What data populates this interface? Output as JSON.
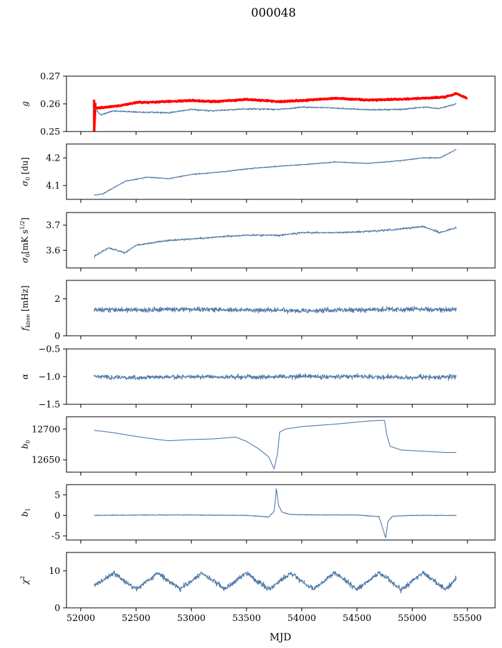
{
  "figure": {
    "title": "000048",
    "xlabel": "MJD"
  },
  "chart_data": {
    "type": "line",
    "title": "000048",
    "xlabel": "MJD",
    "xlim": [
      51870,
      55750
    ],
    "xticks": [
      52000,
      52500,
      53000,
      53500,
      54000,
      54500,
      55000,
      55500
    ],
    "x_start": 52120,
    "x_end": 55400,
    "panels": [
      {
        "ylabel": "g",
        "ylim": [
          0.25,
          0.27
        ],
        "yticks": [
          0.25,
          0.26,
          0.27
        ],
        "series": [
          {
            "color": "#ff0000",
            "x": [
              52120,
              52130,
              52200,
              52350,
              52500,
              52700,
              53000,
              53200,
              53500,
              53800,
              54000,
              54300,
              54600,
              54900,
              55100,
              55200,
              55300,
              55400,
              55500
            ],
            "y": [
              0.2595,
              0.2585,
              0.2587,
              0.2593,
              0.2605,
              0.2607,
              0.2612,
              0.2608,
              0.2616,
              0.2608,
              0.2612,
              0.262,
              0.2614,
              0.2617,
              0.262,
              0.2622,
              0.2625,
              0.2637,
              0.262
            ]
          },
          {
            "color": "#4e79a7",
            "x": [
              52120,
              52180,
              52300,
              52500,
              52800,
              53000,
              53200,
              53500,
              53800,
              54000,
              54300,
              54600,
              54900,
              55100,
              55250,
              55400
            ],
            "y": [
              0.2585,
              0.256,
              0.2575,
              0.257,
              0.2568,
              0.258,
              0.2575,
              0.2582,
              0.258,
              0.2588,
              0.2585,
              0.2578,
              0.258,
              0.2588,
              0.2584,
              0.26
            ]
          }
        ]
      },
      {
        "ylabel": "σ0 [du]",
        "ylim": [
          4.05,
          4.25
        ],
        "yticks": [
          4.1,
          4.2
        ],
        "series": [
          {
            "color": "#4e79a7",
            "x": [
              52120,
              52200,
              52400,
              52600,
              52800,
              53000,
              53300,
              53500,
              53800,
              54000,
              54300,
              54600,
              54900,
              55100,
              55250,
              55400
            ],
            "y": [
              4.065,
              4.07,
              4.115,
              4.13,
              4.125,
              4.14,
              4.15,
              4.16,
              4.17,
              4.175,
              4.185,
              4.18,
              4.19,
              4.2,
              4.2,
              4.23
            ]
          }
        ]
      },
      {
        "ylabel": "σ0[mK s^1/2]",
        "ylim": [
          3.53,
          3.75
        ],
        "yticks": [
          3.6,
          3.7
        ],
        "series": [
          {
            "color": "#4e79a7",
            "x": [
              52120,
              52250,
              52400,
              52500,
              52800,
              53000,
              53300,
              53500,
              53800,
              54000,
              54300,
              54600,
              54900,
              55100,
              55250,
              55400
            ],
            "y": [
              3.575,
              3.61,
              3.59,
              3.62,
              3.64,
              3.645,
              3.655,
              3.66,
              3.66,
              3.67,
              3.67,
              3.675,
              3.685,
              3.695,
              3.67,
              3.69
            ]
          }
        ]
      },
      {
        "ylabel": "f_knee [mHz]",
        "ylim": [
          0,
          3
        ],
        "yticks": [
          0,
          2
        ],
        "series": [
          {
            "color": "#4e79a7",
            "x": [
              52120,
              52500,
              53000,
              53500,
              54000,
              54500,
              55000,
              55400
            ],
            "y": [
              1.4,
              1.4,
              1.45,
              1.4,
              1.35,
              1.4,
              1.45,
              1.4
            ]
          }
        ]
      },
      {
        "ylabel": "α",
        "ylim": [
          -1.5,
          -0.5
        ],
        "yticks": [
          -1.5,
          -1.0,
          -0.5
        ],
        "series": [
          {
            "color": "#4e79a7",
            "x": [
              52120,
              52500,
              53000,
              53500,
              54000,
              54500,
              55000,
              55400
            ],
            "y": [
              -1.0,
              -1.02,
              -1.0,
              -1.01,
              -1.0,
              -1.0,
              -1.02,
              -1.0
            ]
          }
        ]
      },
      {
        "ylabel": "b0",
        "ylim": [
          12630,
          12720
        ],
        "yticks": [
          12650,
          12700
        ],
        "series": [
          {
            "color": "#4e79a7",
            "x": [
              52120,
              52300,
              52500,
              52700,
              52800,
              53000,
              53200,
              53400,
              53500,
              53600,
              53700,
              53750,
              53780,
              53800,
              53850,
              54000,
              54300,
              54600,
              54700,
              54750,
              54770,
              54800,
              54900,
              55100,
              55300,
              55400
            ],
            "y": [
              12698,
              12694,
              12688,
              12683,
              12681,
              12683,
              12684,
              12687,
              12680,
              12669,
              12655,
              12635,
              12660,
              12695,
              12700,
              12704,
              12708,
              12713,
              12714,
              12714,
              12690,
              12672,
              12666,
              12664,
              12662,
              12662
            ]
          }
        ]
      },
      {
        "ylabel": "b1",
        "ylim": [
          -6,
          7.5
        ],
        "yticks": [
          -5,
          0,
          5
        ],
        "series": [
          {
            "color": "#4e79a7",
            "x": [
              52120,
              52500,
              53000,
              53500,
              53700,
              53750,
              53770,
              53790,
              53820,
              53900,
              54200,
              54500,
              54700,
              54760,
              54780,
              54820,
              55000,
              55400
            ],
            "y": [
              0,
              0.1,
              0.1,
              0,
              -0.4,
              1,
              6.5,
              2.5,
              0.8,
              0.2,
              0.1,
              0.1,
              -0.3,
              -5.5,
              -1.5,
              -0.2,
              0,
              0
            ]
          }
        ]
      },
      {
        "ylabel": "χ2",
        "ylim": [
          0,
          15
        ],
        "yticks": [
          0,
          10
        ],
        "series": [
          {
            "color": "#4e79a7",
            "x": [
              52120,
              52300,
              52500,
              52700,
              52900,
              53100,
              53300,
              53500,
              53700,
              53900,
              54100,
              54300,
              54500,
              54700,
              54900,
              55100,
              55300,
              55400
            ],
            "y": [
              6,
              9.5,
              5,
              9.5,
              5,
              9.5,
              5,
              9.5,
              5,
              9.5,
              5,
              9.5,
              5,
              9.5,
              5,
              9.5,
              5,
              8
            ]
          }
        ]
      }
    ]
  }
}
